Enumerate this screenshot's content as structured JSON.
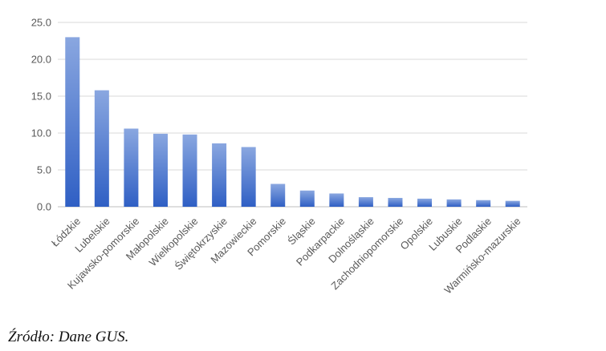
{
  "chart_data": {
    "type": "bar",
    "title": "",
    "xlabel": "",
    "ylabel": "",
    "categories": [
      "Łódzkie",
      "Lubelskie",
      "Kujawsko-pomorskie",
      "Małopolskie",
      "Wielkopolskie",
      "Świętokrzyskie",
      "Mazowieckie",
      "Pomorskie",
      "Śląskie",
      "Podkarpackie",
      "Dolnośląskie",
      "Zachodniopomorskie",
      "Opolskie",
      "Lubuskie",
      "Podlaskie",
      "Warmińsko-mazurskie"
    ],
    "values": [
      23.0,
      15.8,
      10.6,
      9.9,
      9.8,
      8.6,
      8.1,
      3.1,
      2.2,
      1.8,
      1.3,
      1.2,
      1.1,
      1.0,
      0.9,
      0.8
    ],
    "ylim": [
      0,
      25
    ],
    "yticks": [
      "0.0",
      "5.0",
      "10.0",
      "15.0",
      "20.0",
      "25.0"
    ],
    "grid": true,
    "legend": "none",
    "colors": {
      "bar_top": "#8aa7e0",
      "bar_bottom": "#2f5fc4",
      "grid": "#d9d9d9",
      "axis": "#bfbfbf"
    }
  },
  "source": "Źródło: Dane GUS."
}
